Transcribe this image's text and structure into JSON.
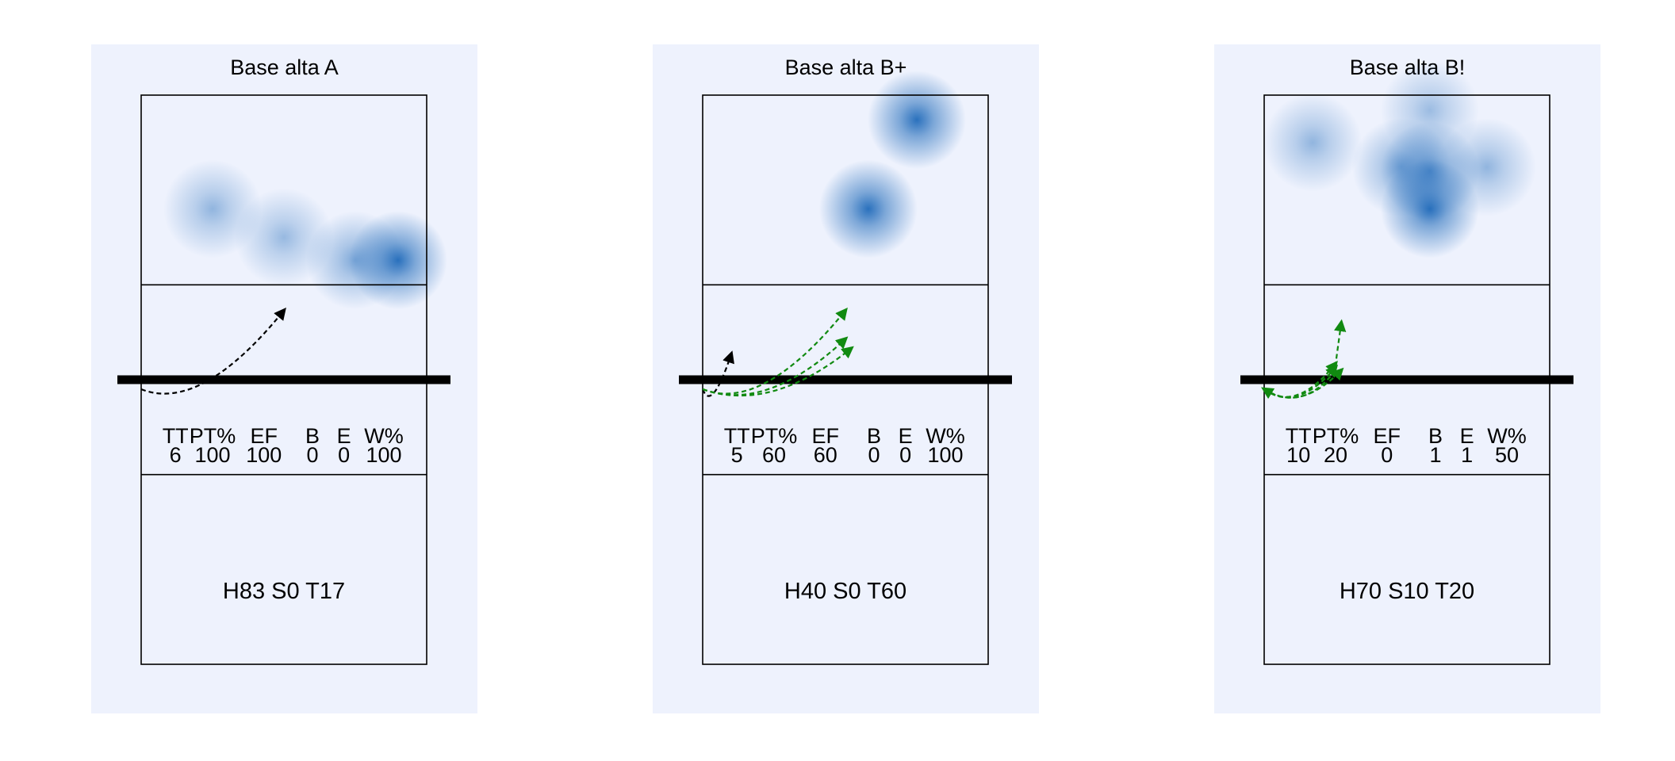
{
  "colors": {
    "panel_bg": "#eef2fd",
    "court_line": "#000000",
    "net": "#000000",
    "heat": "#1563b6",
    "arrow_black": "#000000",
    "arrow_green": "#118a11"
  },
  "stat_headers": [
    "TT",
    "PT%",
    "EF",
    "B",
    "E",
    "W%"
  ],
  "chart_data": [
    {
      "type": "heatmap",
      "title": "Base alta A",
      "stats": [
        "6",
        "100",
        "100",
        "0",
        "0",
        "100"
      ],
      "summary": "H83 S0 T17",
      "heat_spots": [
        {
          "x": 0.25,
          "y": 0.6,
          "w": 0.45
        },
        {
          "x": 0.5,
          "y": 0.75,
          "w": 0.42
        },
        {
          "x": 0.75,
          "y": 0.87,
          "w": 0.55
        },
        {
          "x": 0.9,
          "y": 0.87,
          "w": 0.95
        }
      ],
      "arrows": [
        {
          "color": "black",
          "from": [
            0.0,
            1.1
          ],
          "to": [
            0.5,
            0.27
          ]
        }
      ]
    },
    {
      "type": "heatmap",
      "title": "Base alta B+",
      "stats": [
        "5",
        "60",
        "60",
        "0",
        "0",
        "100"
      ],
      "summary": "H40 S0 T60",
      "heat_spots": [
        {
          "x": 0.58,
          "y": 0.6,
          "w": 0.95
        },
        {
          "x": 0.75,
          "y": 0.13,
          "w": 0.95
        }
      ],
      "arrows": [
        {
          "color": "black",
          "from": [
            0.0,
            1.1
          ],
          "to": [
            0.1,
            0.73
          ]
        },
        {
          "color": "green",
          "from": [
            0.0,
            1.1
          ],
          "to": [
            0.5,
            0.57
          ]
        },
        {
          "color": "green",
          "from": [
            0.0,
            1.1
          ],
          "to": [
            0.52,
            0.67
          ]
        },
        {
          "color": "green",
          "from": [
            0.0,
            1.1
          ],
          "to": [
            0.5,
            0.27
          ]
        }
      ]
    },
    {
      "type": "heatmap",
      "title": "Base alta B!",
      "stats": [
        "10",
        "20",
        "0",
        "1",
        "1",
        "50"
      ],
      "summary": "H70 S10 T20",
      "heat_spots": [
        {
          "x": 0.17,
          "y": 0.25,
          "w": 0.45
        },
        {
          "x": 0.58,
          "y": 0.08,
          "w": 0.4
        },
        {
          "x": 0.48,
          "y": 0.38,
          "w": 0.55
        },
        {
          "x": 0.78,
          "y": 0.38,
          "w": 0.45
        },
        {
          "x": 0.58,
          "y": 0.4,
          "w": 0.7
        },
        {
          "x": 0.58,
          "y": 0.6,
          "w": 0.95
        }
      ],
      "arrows": [
        {
          "color": "green",
          "from": [
            0.0,
            1.1
          ],
          "to": [
            0.25,
            0.83
          ]
        },
        {
          "color": "green",
          "from": [
            0.0,
            1.1
          ],
          "to": [
            0.25,
            0.87
          ]
        },
        {
          "color": "green",
          "from": [
            0.25,
            0.9
          ],
          "to": [
            0.0,
            1.1
          ]
        },
        {
          "color": "green",
          "from": [
            0.0,
            1.1
          ],
          "to": [
            0.27,
            0.9
          ]
        },
        {
          "color": "green",
          "from": [
            0.25,
            0.9
          ],
          "to": [
            0.27,
            0.4
          ]
        }
      ]
    }
  ]
}
